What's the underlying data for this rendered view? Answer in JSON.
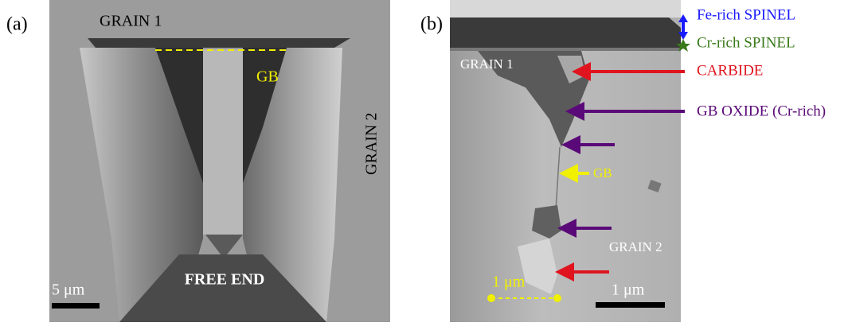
{
  "panels": [
    {
      "label": "(a)",
      "grain_top": "GRAIN 1",
      "boundary": "GB",
      "grain_side": "GRAIN 2",
      "free_end": "FREE END",
      "scale_bar": "5 μm"
    },
    {
      "label": "(b)",
      "grain_top": "GRAIN 1",
      "grain_bottom": "GRAIN 2",
      "boundary": "GB",
      "distance": "1 μm",
      "scale_bar": "1 μm",
      "legend": [
        "Fe-rich SPINEL",
        "Cr-rich SPINEL",
        "CARBIDE",
        "GB OXIDE (Cr-rich)"
      ]
    }
  ]
}
